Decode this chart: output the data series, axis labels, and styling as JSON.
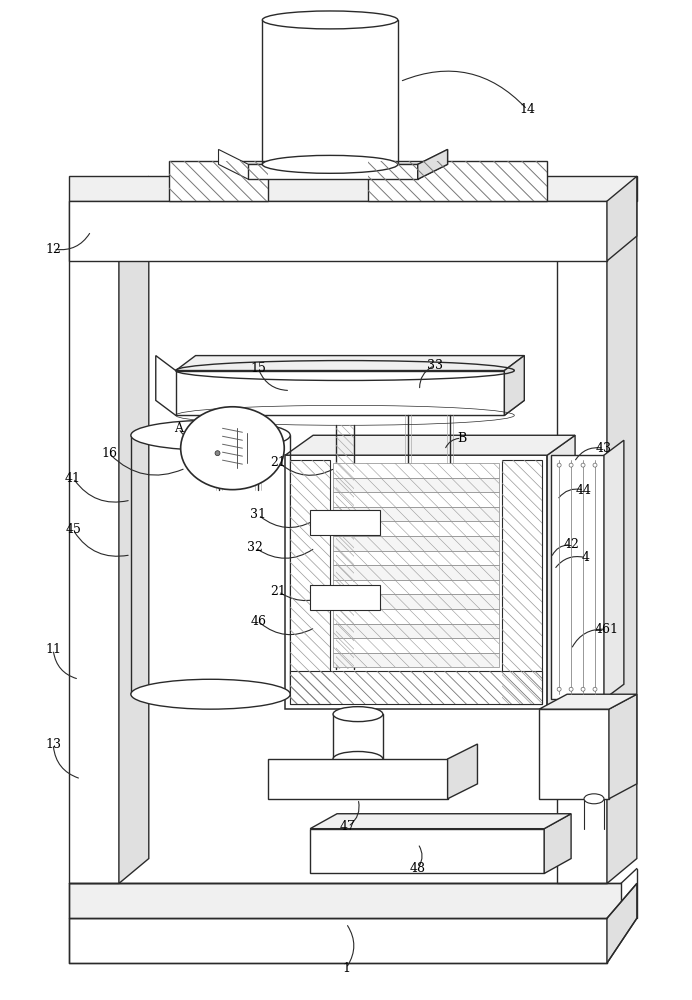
{
  "background_color": "#ffffff",
  "line_color": "#2a2a2a",
  "figsize": [
    6.92,
    10.0
  ],
  "dpi": 100,
  "labels": [
    [
      "1",
      346,
      970
    ],
    [
      "4",
      587,
      558
    ],
    [
      "11",
      52,
      650
    ],
    [
      "12",
      52,
      248
    ],
    [
      "13",
      52,
      745
    ],
    [
      "14",
      528,
      108
    ],
    [
      "15",
      258,
      368
    ],
    [
      "16",
      108,
      453
    ],
    [
      "21",
      278,
      462
    ],
    [
      "21",
      278,
      592
    ],
    [
      "31",
      258,
      515
    ],
    [
      "32",
      255,
      548
    ],
    [
      "33",
      435,
      365
    ],
    [
      "41",
      72,
      478
    ],
    [
      "42",
      572,
      545
    ],
    [
      "43",
      605,
      448
    ],
    [
      "44",
      585,
      490
    ],
    [
      "45",
      72,
      530
    ],
    [
      "46",
      258,
      622
    ],
    [
      "461",
      608,
      630
    ],
    [
      "47",
      348,
      828
    ],
    [
      "48",
      418,
      870
    ],
    [
      "A",
      178,
      428
    ],
    [
      "B",
      462,
      438
    ]
  ]
}
